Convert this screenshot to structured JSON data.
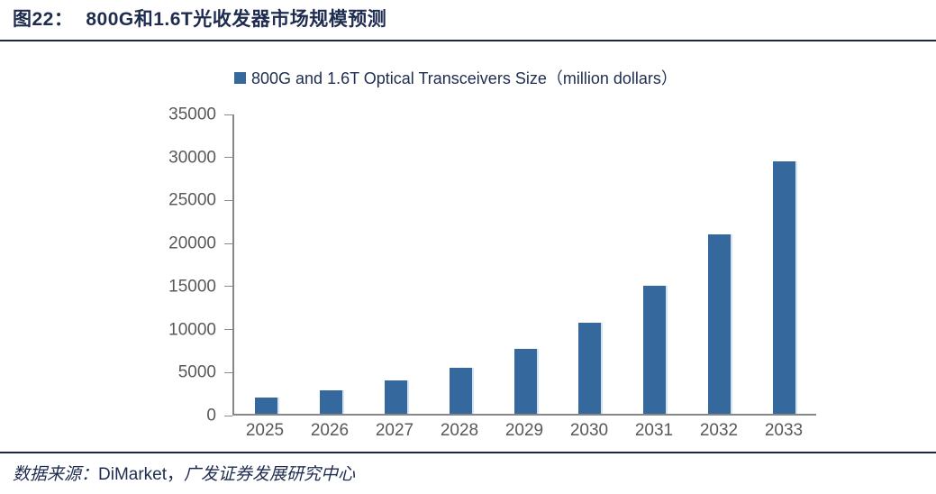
{
  "figure": {
    "title_label": "图22：",
    "title_text": "800G和1.6T光收发器市场规模预测",
    "source_prefix": "数据来源：",
    "source_name": "DiMarket，",
    "source_suffix": "广发证券发展研究中心"
  },
  "chart_data": {
    "type": "bar",
    "legend": "800G and 1.6T Optical Transceivers  Size（million dollars）",
    "categories": [
      "2025",
      "2026",
      "2027",
      "2028",
      "2029",
      "2030",
      "2031",
      "2032",
      "2033"
    ],
    "values": [
      1900,
      2750,
      3900,
      5400,
      7600,
      10600,
      15000,
      21000,
      29500
    ],
    "title": "",
    "xlabel": "",
    "ylabel": "",
    "ylim": [
      0,
      35000
    ],
    "yticks": [
      0,
      5000,
      10000,
      15000,
      20000,
      25000,
      30000,
      35000
    ],
    "grid": false,
    "legend_position": "top",
    "bar_color": "#35699e",
    "bar_edge_color": "#cde0f2",
    "axis_color": "#878787",
    "tick_label_color": "#595959",
    "text_color": "#1e2c4f"
  }
}
